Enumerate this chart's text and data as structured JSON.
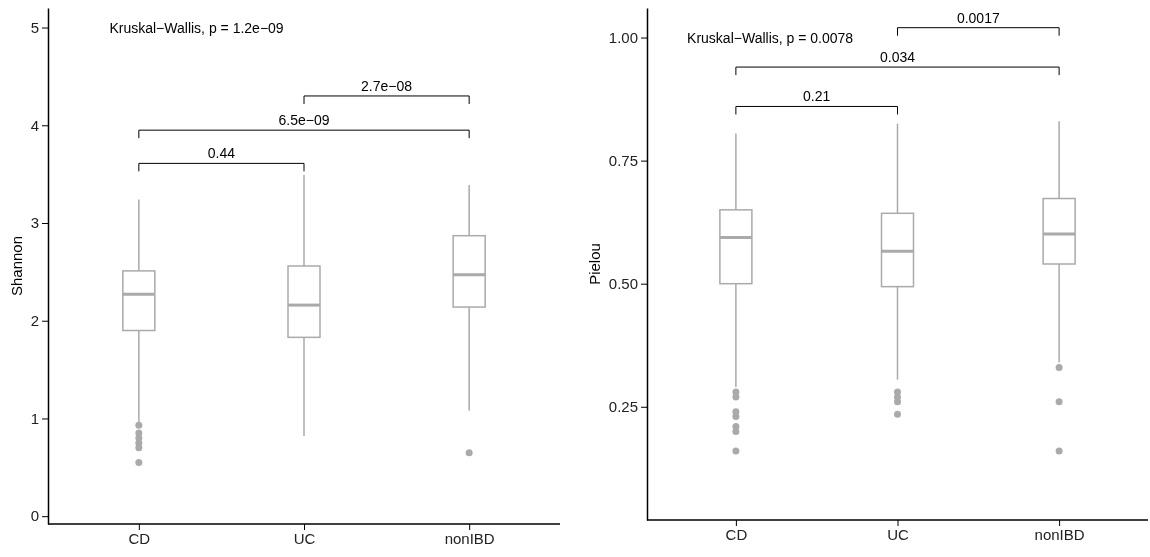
{
  "chart_data": [
    {
      "type": "box",
      "ylabel": "Shannon",
      "categories": [
        "CD",
        "UC",
        "nonIBD"
      ],
      "ylim": [
        -0.08,
        5.2
      ],
      "yticks": [
        0,
        1,
        2,
        3,
        4,
        5
      ],
      "grid": false,
      "color": "#aaaaaa",
      "boxes": [
        {
          "low": 0.95,
          "q1": 1.9,
          "median": 2.27,
          "q3": 2.51,
          "high": 3.24,
          "outliers": [
            0.93,
            0.85,
            0.8,
            0.75,
            0.7,
            0.55
          ]
        },
        {
          "low": 0.82,
          "q1": 1.83,
          "median": 2.16,
          "q3": 2.56,
          "high": 3.49
        },
        {
          "low": 1.08,
          "q1": 2.14,
          "median": 2.47,
          "q3": 2.87,
          "high": 3.39,
          "outliers": [
            0.65
          ]
        }
      ],
      "annotations": [
        "Kruskal−Wallis, p = 1.2e−09",
        "0.44",
        "6.5e−09",
        "2.7e−08"
      ]
    },
    {
      "type": "box",
      "ylabel": "Pielou",
      "categories": [
        "CD",
        "UC",
        "nonIBD"
      ],
      "ylim": [
        0.02,
        1.06
      ],
      "yticks": [
        {
          "value": 0.25,
          "label": "0.25"
        },
        {
          "value": 0.5,
          "label": "0.50"
        },
        {
          "value": 0.75,
          "label": "0.75"
        },
        {
          "value": 1,
          "label": "1.00"
        }
      ],
      "grid": false,
      "color": "#aaaaaa",
      "boxes": [
        {
          "low": 0.29,
          "q1": 0.5,
          "median": 0.594,
          "q3": 0.65,
          "high": 0.805,
          "outliers": [
            0.28,
            0.27,
            0.24,
            0.23,
            0.21,
            0.2,
            0.16
          ]
        },
        {
          "low": 0.305,
          "q1": 0.494,
          "median": 0.566,
          "q3": 0.643,
          "high": 0.825,
          "outliers": [
            0.28,
            0.27,
            0.26,
            0.235
          ]
        },
        {
          "low": 0.34,
          "q1": 0.54,
          "median": 0.601,
          "q3": 0.673,
          "high": 0.83,
          "outliers": [
            0.33,
            0.26,
            0.16
          ]
        }
      ],
      "annotations": [
        "Kruskal−Wallis, p = 0.0078",
        "0.21",
        "0.034",
        "0.0017"
      ]
    }
  ]
}
